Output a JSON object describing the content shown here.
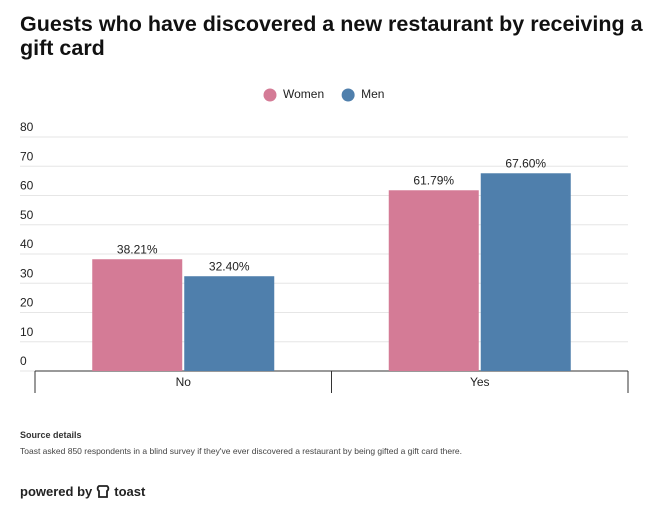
{
  "chart_data": {
    "type": "bar",
    "title": "Guests who have discovered a new restaurant by receiving a gift card",
    "categories": [
      "No",
      "Yes"
    ],
    "series": [
      {
        "name": "Women",
        "color": "#d47b96",
        "values": [
          38.21,
          61.79
        ],
        "value_labels": [
          "38.21%",
          "61.79%"
        ]
      },
      {
        "name": "Men",
        "color": "#4f7fac",
        "values": [
          32.4,
          67.6
        ],
        "value_labels": [
          "32.40%",
          "67.60%"
        ]
      }
    ],
    "ylim": [
      0,
      80
    ],
    "yticks": [
      0,
      10,
      20,
      30,
      40,
      50,
      60,
      70,
      80
    ],
    "grid": true,
    "legend": "top"
  },
  "footer": {
    "source_title": "Source details",
    "source_text": "Toast asked 850 respondents in a blind survey if they've ever discovered a restaurant by being gifted a gift card there.",
    "powered_by": "powered by",
    "brand": "toast"
  }
}
